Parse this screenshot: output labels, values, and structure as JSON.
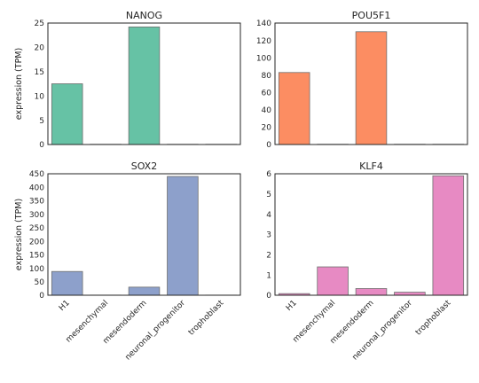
{
  "chart_data": [
    {
      "type": "bar",
      "title": "NANOG",
      "ylabel": "expression (TPM)",
      "categories": [
        "H1",
        "mesenchymal",
        "mesendoderm",
        "neuronal_progenitor",
        "trophoblast"
      ],
      "values": [
        12.5,
        0.05,
        24.2,
        0.05,
        0.05
      ],
      "ylim": [
        0,
        25
      ],
      "yticks": [
        0,
        5,
        10,
        15,
        20,
        25
      ],
      "color": "#66c2a5",
      "show_xticklabels": false
    },
    {
      "type": "bar",
      "title": "POU5F1",
      "ylabel": "",
      "categories": [
        "H1",
        "mesenchymal",
        "mesendoderm",
        "neuronal_progenitor",
        "trophoblast"
      ],
      "values": [
        83,
        0.3,
        130,
        0.3,
        0.3
      ],
      "ylim": [
        0,
        140
      ],
      "yticks": [
        0,
        20,
        40,
        60,
        80,
        100,
        120,
        140
      ],
      "color": "#fc8d62",
      "show_xticklabels": false
    },
    {
      "type": "bar",
      "title": "SOX2",
      "ylabel": "expression (TPM)",
      "categories": [
        "H1",
        "mesenchymal",
        "mesendoderm",
        "neuronal_progenitor",
        "trophoblast"
      ],
      "values": [
        88,
        0.5,
        30,
        440,
        0.5
      ],
      "ylim": [
        0,
        450
      ],
      "yticks": [
        0,
        50,
        100,
        150,
        200,
        250,
        300,
        350,
        400,
        450
      ],
      "color": "#8da0cb",
      "show_xticklabels": true
    },
    {
      "type": "bar",
      "title": "KLF4",
      "ylabel": "",
      "categories": [
        "H1",
        "mesenchymal",
        "mesendoderm",
        "neuronal_progenitor",
        "trophoblast"
      ],
      "values": [
        0.08,
        1.4,
        0.33,
        0.15,
        5.9
      ],
      "ylim": [
        0,
        6
      ],
      "yticks": [
        0,
        1,
        2,
        3,
        4,
        5,
        6
      ],
      "color": "#e78ac3",
      "show_xticklabels": true
    }
  ]
}
